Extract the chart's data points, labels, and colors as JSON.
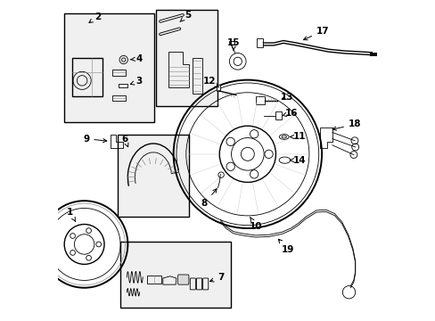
{
  "title": "",
  "bg_color": "#ffffff",
  "line_color": "#000000",
  "gray_color": "#888888",
  "light_gray": "#cccccc",
  "box_color": "#f0f0f0",
  "figsize": [
    4.89,
    3.6
  ],
  "dpi": 100
}
